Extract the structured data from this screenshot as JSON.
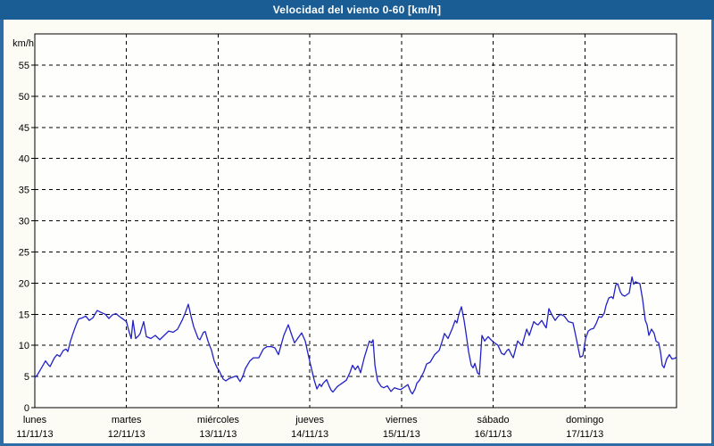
{
  "window": {
    "title": "Velocidad del viento 0-60 [km/h]"
  },
  "colors": {
    "titlebar_bg": "#1A5C94",
    "frame_border": "#2E6DA8",
    "page_bg": "#FCFCF4",
    "plot_bg": "#FEFEFC",
    "grid": "#000000",
    "axis": "#000000",
    "line": "#2121C8",
    "title_text": "#FFFFFF"
  },
  "chart_data": {
    "type": "line",
    "title": "Velocidad del viento 0-60 [km/h]",
    "ylabel": "km/h",
    "xlabel": "",
    "ylim": [
      0,
      60
    ],
    "yticks": [
      0,
      5,
      10,
      15,
      20,
      25,
      30,
      35,
      40,
      45,
      50,
      55
    ],
    "grid": "dashed",
    "legend_position": "none",
    "x_range_days": [
      0,
      7
    ],
    "xticks": [
      {
        "name": "lunes",
        "date": "11/11/13",
        "day_index": 0
      },
      {
        "name": "martes",
        "date": "12/11/13",
        "day_index": 1
      },
      {
        "name": "miércoles",
        "date": "13/11/13",
        "day_index": 2
      },
      {
        "name": "jueves",
        "date": "14/11/13",
        "day_index": 3
      },
      {
        "name": "viernes",
        "date": "15/11/13",
        "day_index": 4
      },
      {
        "name": "sábado",
        "date": "16/11/13",
        "day_index": 5
      },
      {
        "name": "domingo",
        "date": "17/11/13",
        "day_index": 6
      }
    ],
    "series": [
      {
        "name": "Velocidad del viento (km/h)",
        "points": [
          [
            0.0,
            4.8
          ],
          [
            0.029,
            5.3
          ],
          [
            0.078,
            6.5
          ],
          [
            0.117,
            7.5
          ],
          [
            0.146,
            6.9
          ],
          [
            0.166,
            6.6
          ],
          [
            0.214,
            8.0
          ],
          [
            0.243,
            8.5
          ],
          [
            0.273,
            8.2
          ],
          [
            0.312,
            9.2
          ],
          [
            0.341,
            9.4
          ],
          [
            0.36,
            9.0
          ],
          [
            0.389,
            10.7
          ],
          [
            0.419,
            12.0
          ],
          [
            0.448,
            13.2
          ],
          [
            0.477,
            14.2
          ],
          [
            0.516,
            14.4
          ],
          [
            0.555,
            14.7
          ],
          [
            0.594,
            14.0
          ],
          [
            0.633,
            14.4
          ],
          [
            0.681,
            15.6
          ],
          [
            0.72,
            15.3
          ],
          [
            0.769,
            15.0
          ],
          [
            0.808,
            14.3
          ],
          [
            0.847,
            14.9
          ],
          [
            0.886,
            15.1
          ],
          [
            0.925,
            14.6
          ],
          [
            0.964,
            14.2
          ],
          [
            1.0,
            13.8
          ],
          [
            1.022,
            12.5
          ],
          [
            1.051,
            11.1
          ],
          [
            1.071,
            14.0
          ],
          [
            1.1,
            11.1
          ],
          [
            1.129,
            11.5
          ],
          [
            1.149,
            11.9
          ],
          [
            1.188,
            13.8
          ],
          [
            1.217,
            11.4
          ],
          [
            1.266,
            11.1
          ],
          [
            1.314,
            11.6
          ],
          [
            1.363,
            10.9
          ],
          [
            1.412,
            11.6
          ],
          [
            1.46,
            12.3
          ],
          [
            1.509,
            12.1
          ],
          [
            1.558,
            12.6
          ],
          [
            1.606,
            14.0
          ],
          [
            1.636,
            15.0
          ],
          [
            1.675,
            16.6
          ],
          [
            1.704,
            14.7
          ],
          [
            1.733,
            13.0
          ],
          [
            1.782,
            11.1
          ],
          [
            1.801,
            10.9
          ],
          [
            1.84,
            12.1
          ],
          [
            1.86,
            12.2
          ],
          [
            1.889,
            10.7
          ],
          [
            1.928,
            9.2
          ],
          [
            1.957,
            7.5
          ],
          [
            1.986,
            6.5
          ],
          [
            2.015,
            5.8
          ],
          [
            2.054,
            4.6
          ],
          [
            2.083,
            4.3
          ],
          [
            2.122,
            4.7
          ],
          [
            2.161,
            4.9
          ],
          [
            2.2,
            5.1
          ],
          [
            2.239,
            4.2
          ],
          [
            2.268,
            5.0
          ],
          [
            2.298,
            6.3
          ],
          [
            2.346,
            7.5
          ],
          [
            2.385,
            8.0
          ],
          [
            2.444,
            8.0
          ],
          [
            2.492,
            9.4
          ],
          [
            2.531,
            9.8
          ],
          [
            2.58,
            9.8
          ],
          [
            2.619,
            9.6
          ],
          [
            2.658,
            8.5
          ],
          [
            2.716,
            11.6
          ],
          [
            2.765,
            13.3
          ],
          [
            2.804,
            11.6
          ],
          [
            2.833,
            10.4
          ],
          [
            2.872,
            11.2
          ],
          [
            2.911,
            12.0
          ],
          [
            2.95,
            10.7
          ],
          [
            2.979,
            8.7
          ],
          [
            3.009,
            6.8
          ],
          [
            3.048,
            4.4
          ],
          [
            3.077,
            3.0
          ],
          [
            3.106,
            3.8
          ],
          [
            3.126,
            3.4
          ],
          [
            3.145,
            3.9
          ],
          [
            3.184,
            4.5
          ],
          [
            3.213,
            3.4
          ],
          [
            3.232,
            2.8
          ],
          [
            3.252,
            2.5
          ],
          [
            3.3,
            3.4
          ],
          [
            3.349,
            3.9
          ],
          [
            3.398,
            4.4
          ],
          [
            3.437,
            5.6
          ],
          [
            3.466,
            6.8
          ],
          [
            3.495,
            6.1
          ],
          [
            3.524,
            6.7
          ],
          [
            3.554,
            5.6
          ],
          [
            3.593,
            8.0
          ],
          [
            3.632,
            9.9
          ],
          [
            3.651,
            10.7
          ],
          [
            3.671,
            10.4
          ],
          [
            3.69,
            10.9
          ],
          [
            3.71,
            6.8
          ],
          [
            3.739,
            4.3
          ],
          [
            3.778,
            3.4
          ],
          [
            3.807,
            3.2
          ],
          [
            3.846,
            3.5
          ],
          [
            3.885,
            2.6
          ],
          [
            3.924,
            3.2
          ],
          [
            3.963,
            3.0
          ],
          [
            3.992,
            2.9
          ],
          [
            4.031,
            3.3
          ],
          [
            4.07,
            3.7
          ],
          [
            4.099,
            2.6
          ],
          [
            4.119,
            2.2
          ],
          [
            4.148,
            3.0
          ],
          [
            4.167,
            3.9
          ],
          [
            4.196,
            4.4
          ],
          [
            4.245,
            5.8
          ],
          [
            4.274,
            7.0
          ],
          [
            4.313,
            7.3
          ],
          [
            4.362,
            8.5
          ],
          [
            4.411,
            9.2
          ],
          [
            4.44,
            10.5
          ],
          [
            4.469,
            11.9
          ],
          [
            4.508,
            11.1
          ],
          [
            4.556,
            12.8
          ],
          [
            4.586,
            14.0
          ],
          [
            4.605,
            13.6
          ],
          [
            4.625,
            15.0
          ],
          [
            4.654,
            16.2
          ],
          [
            4.683,
            14.0
          ],
          [
            4.702,
            12.1
          ],
          [
            4.732,
            9.0
          ],
          [
            4.761,
            6.8
          ],
          [
            4.781,
            6.4
          ],
          [
            4.8,
            7.1
          ],
          [
            4.829,
            5.6
          ],
          [
            4.849,
            5.3
          ],
          [
            4.878,
            11.6
          ],
          [
            4.907,
            10.7
          ],
          [
            4.946,
            11.4
          ],
          [
            4.976,
            10.9
          ],
          [
            5.005,
            10.5
          ],
          [
            5.034,
            10.2
          ],
          [
            5.053,
            10.0
          ],
          [
            5.092,
            8.7
          ],
          [
            5.121,
            8.5
          ],
          [
            5.151,
            9.2
          ],
          [
            5.17,
            9.4
          ],
          [
            5.199,
            8.5
          ],
          [
            5.219,
            8.0
          ],
          [
            5.267,
            10.7
          ],
          [
            5.297,
            10.2
          ],
          [
            5.316,
            10.0
          ],
          [
            5.365,
            12.6
          ],
          [
            5.394,
            11.6
          ],
          [
            5.443,
            13.8
          ],
          [
            5.472,
            13.4
          ],
          [
            5.491,
            13.3
          ],
          [
            5.53,
            14.0
          ],
          [
            5.56,
            13.2
          ],
          [
            5.579,
            12.8
          ],
          [
            5.608,
            15.9
          ],
          [
            5.637,
            15.0
          ],
          [
            5.676,
            14.0
          ],
          [
            5.706,
            14.6
          ],
          [
            5.735,
            15.0
          ],
          [
            5.774,
            14.7
          ],
          [
            5.822,
            13.8
          ],
          [
            5.871,
            13.6
          ],
          [
            5.9,
            11.6
          ],
          [
            5.93,
            9.4
          ],
          [
            5.949,
            8.1
          ],
          [
            5.978,
            8.3
          ],
          [
            6.008,
            11.1
          ],
          [
            6.037,
            12.3
          ],
          [
            6.066,
            12.6
          ],
          [
            6.095,
            12.7
          ],
          [
            6.124,
            13.5
          ],
          [
            6.153,
            14.6
          ],
          [
            6.183,
            14.5
          ],
          [
            6.212,
            15.2
          ],
          [
            6.231,
            16.4
          ],
          [
            6.261,
            17.6
          ],
          [
            6.29,
            17.8
          ],
          [
            6.309,
            17.5
          ],
          [
            6.338,
            19.7
          ],
          [
            6.358,
            19.9
          ],
          [
            6.387,
            18.6
          ],
          [
            6.407,
            18.1
          ],
          [
            6.436,
            17.9
          ],
          [
            6.465,
            18.2
          ],
          [
            6.484,
            18.4
          ],
          [
            6.514,
            21.0
          ],
          [
            6.533,
            19.8
          ],
          [
            6.552,
            20.2
          ],
          [
            6.581,
            20.0
          ],
          [
            6.601,
            19.9
          ],
          [
            6.63,
            17.4
          ],
          [
            6.659,
            14.0
          ],
          [
            6.679,
            13.3
          ],
          [
            6.698,
            11.6
          ],
          [
            6.727,
            12.6
          ],
          [
            6.757,
            11.9
          ],
          [
            6.776,
            10.7
          ],
          [
            6.805,
            10.4
          ],
          [
            6.825,
            9.0
          ],
          [
            6.844,
            6.8
          ],
          [
            6.864,
            6.4
          ],
          [
            6.893,
            7.8
          ],
          [
            6.922,
            8.5
          ],
          [
            6.951,
            7.8
          ],
          [
            6.98,
            7.9
          ],
          [
            7.0,
            8.1
          ]
        ]
      }
    ]
  }
}
